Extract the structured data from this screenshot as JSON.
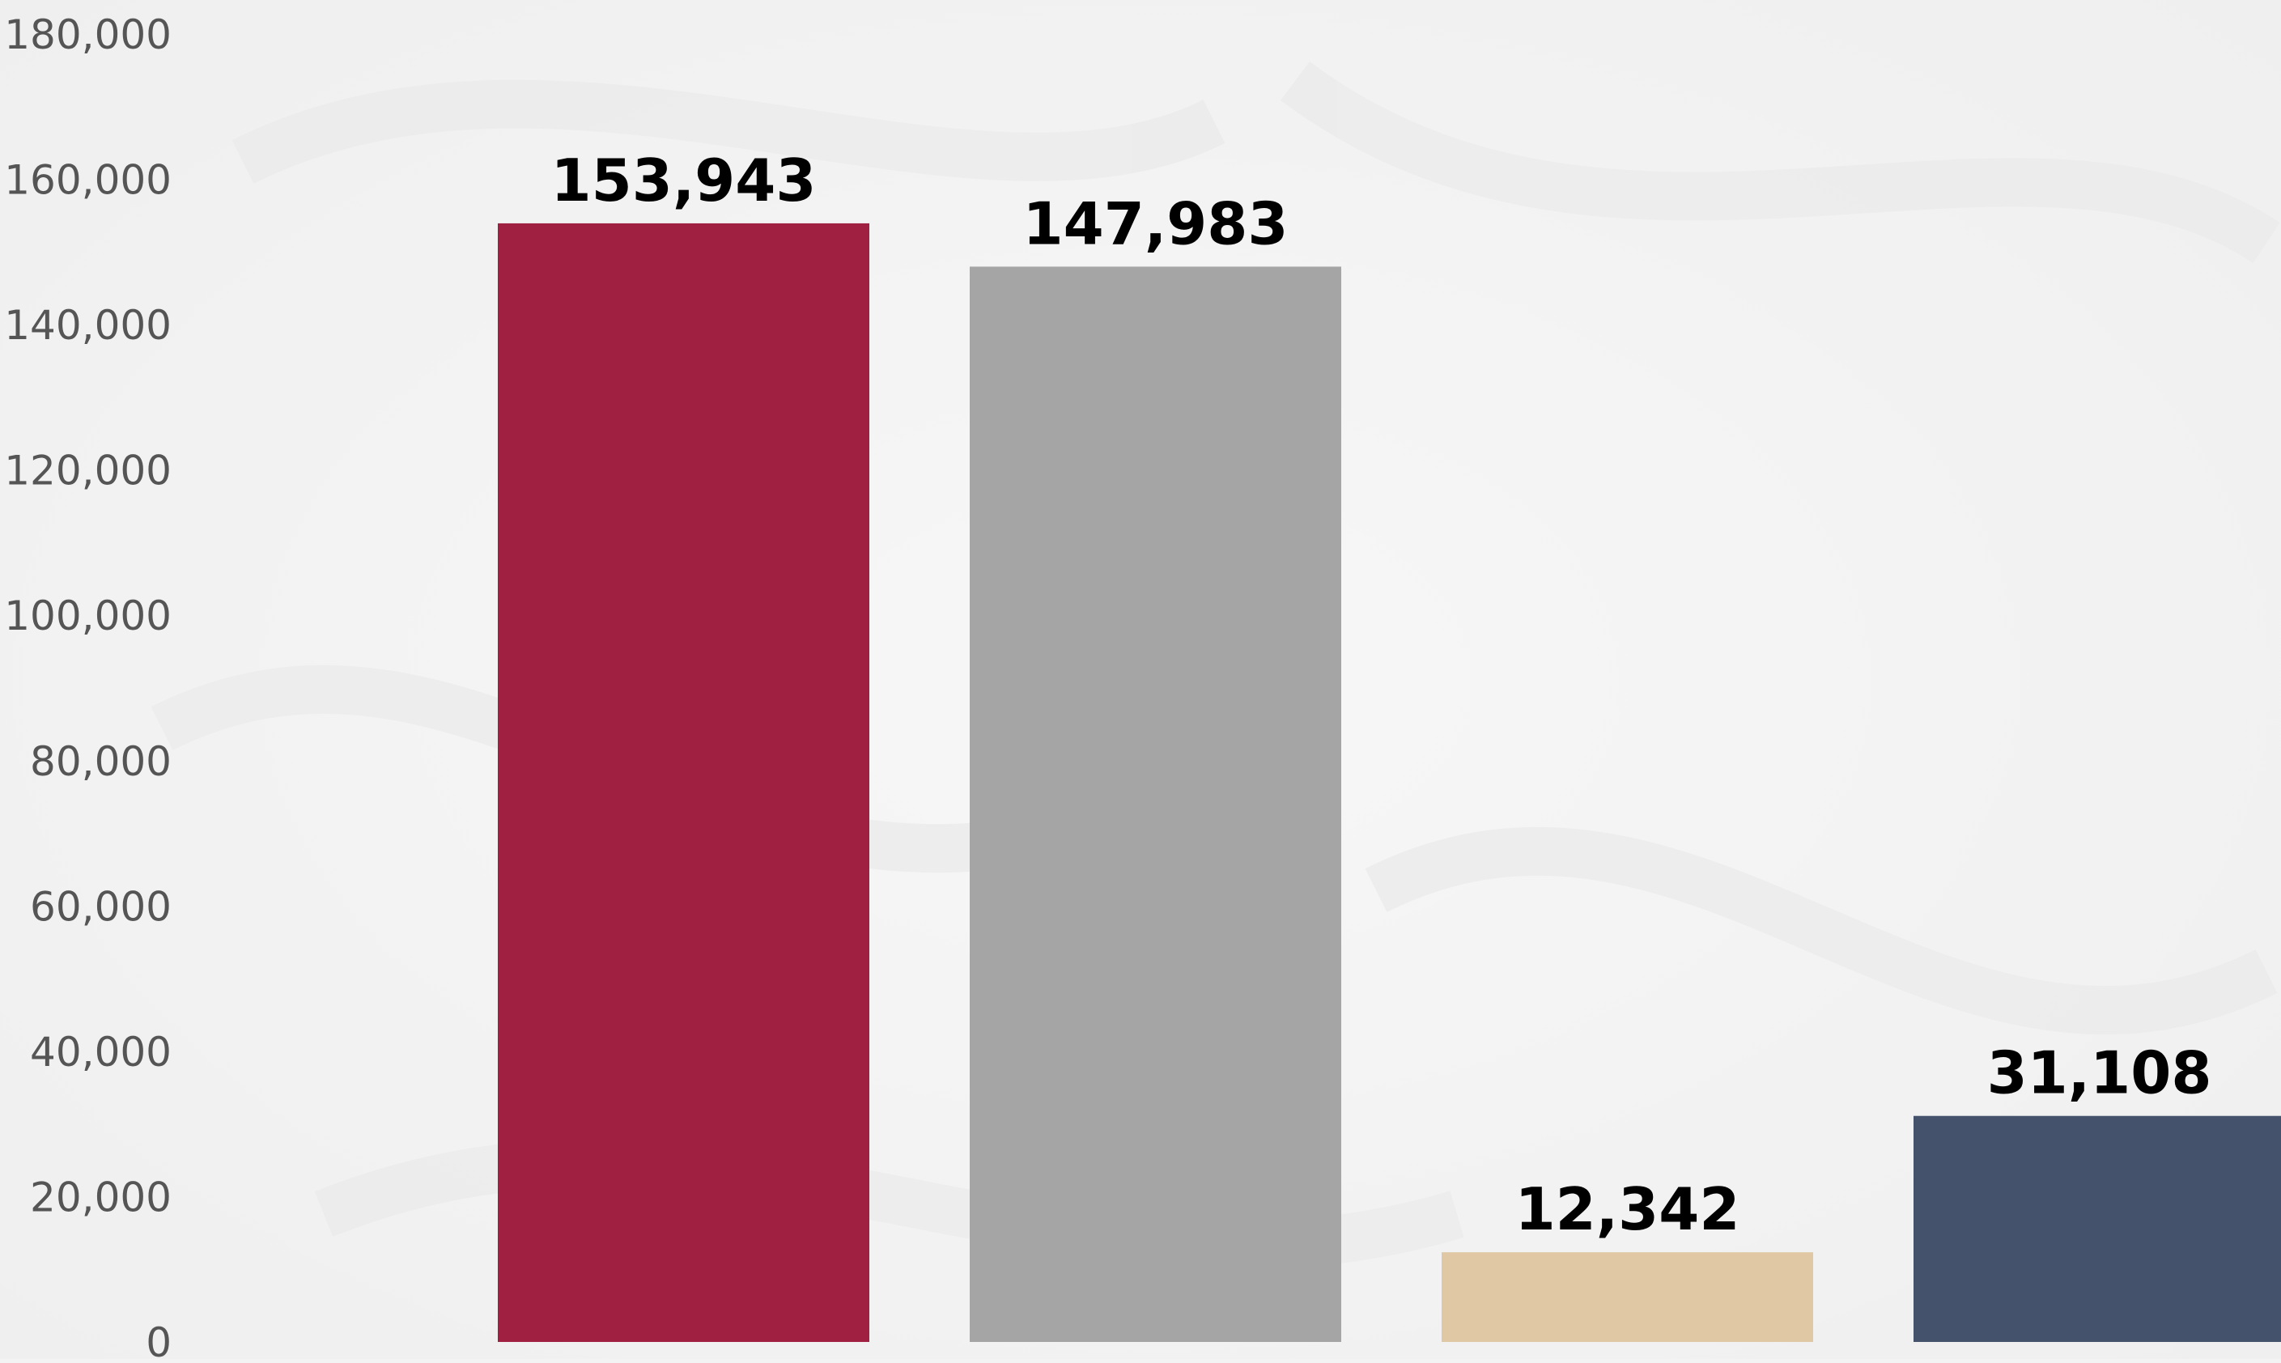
{
  "chart_data": {
    "type": "bar",
    "title": "",
    "xlabel": "",
    "ylabel": "",
    "ylim": [
      0,
      180000
    ],
    "yticks": [
      0,
      20000,
      40000,
      60000,
      80000,
      100000,
      120000,
      140000,
      160000,
      180000
    ],
    "ytick_labels": [
      "0",
      "20,000",
      "40,000",
      "60,000",
      "80,000",
      "100,000",
      "120,000",
      "140,000",
      "160,000",
      "180,000"
    ],
    "categories": [
      "",
      "",
      "",
      ""
    ],
    "values": [
      153943,
      147983,
      12342,
      31108
    ],
    "value_labels": [
      "153,943",
      "147,983",
      "12,342",
      "31,108"
    ],
    "colors": [
      "#a02042",
      "#a5a5a5",
      "#dfc8a3",
      "#44536b"
    ],
    "grid": false,
    "legend": "none"
  }
}
